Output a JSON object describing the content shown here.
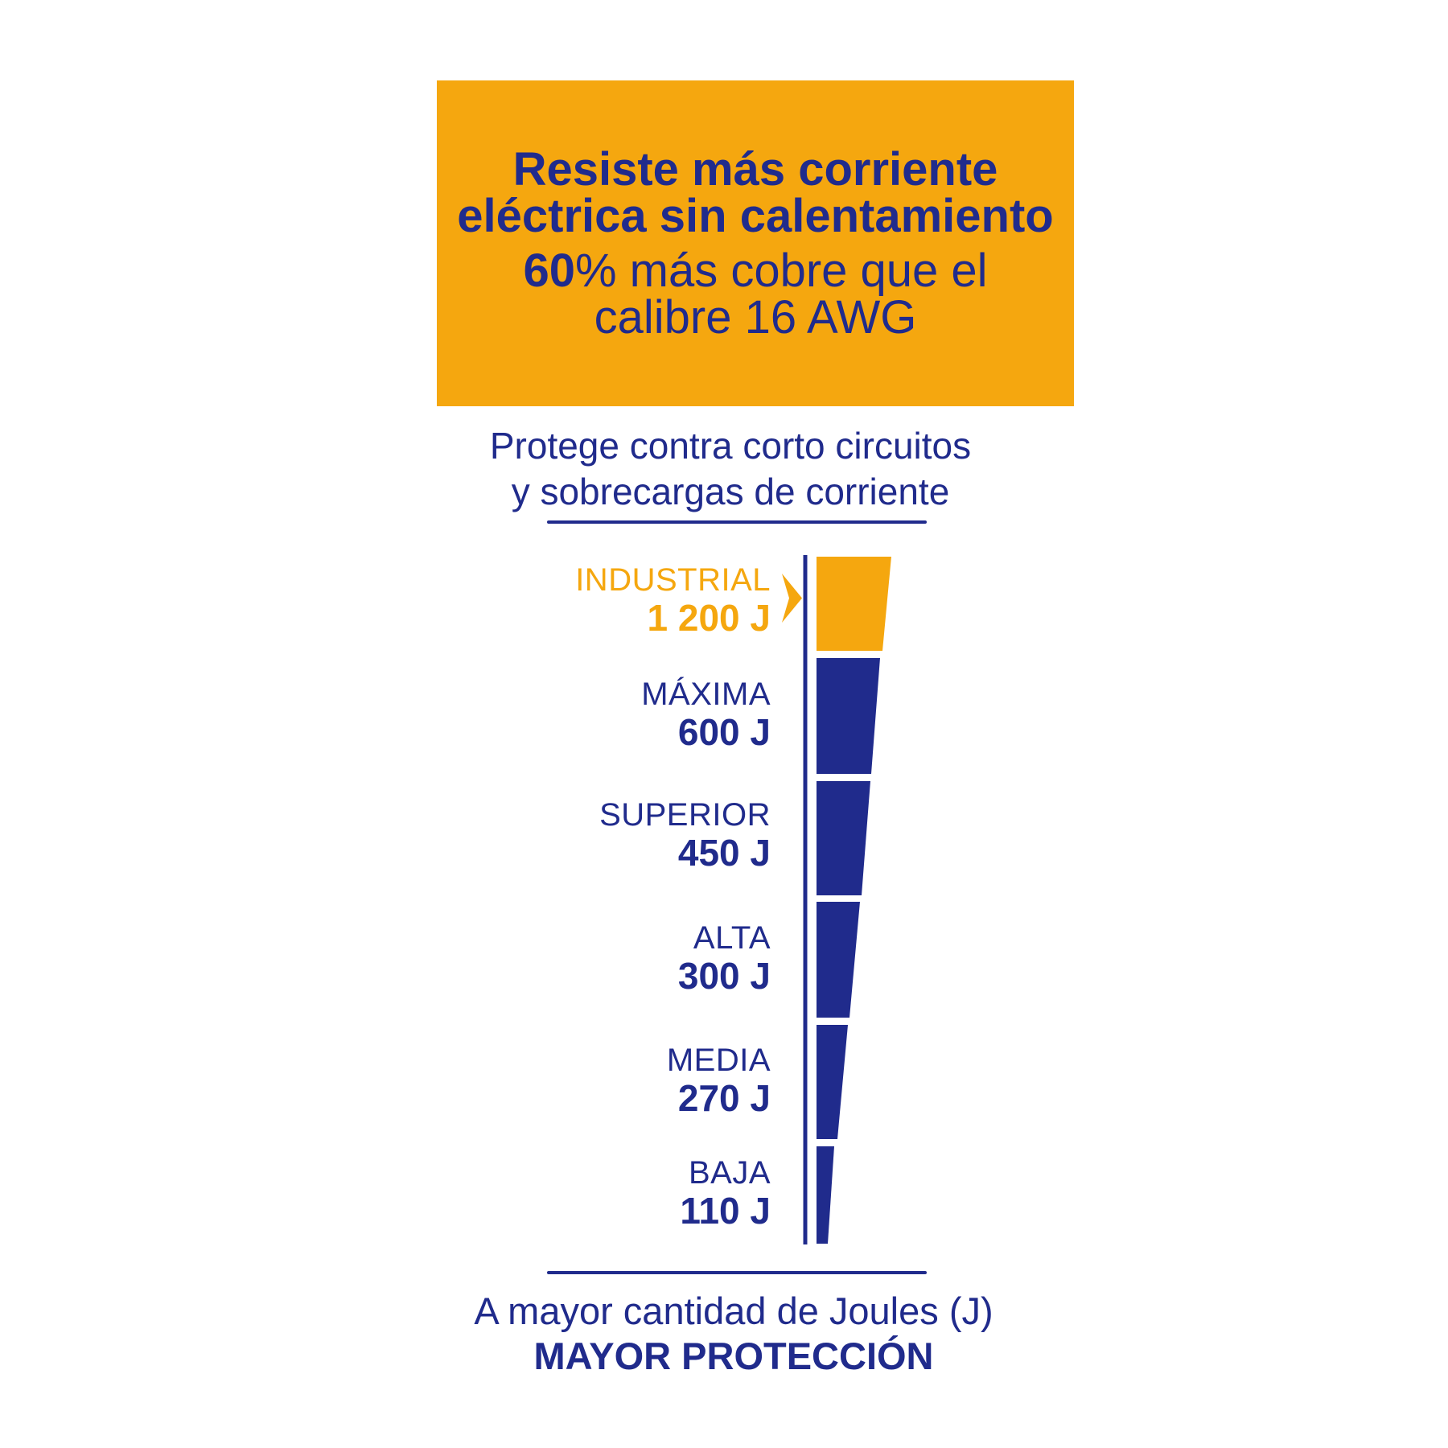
{
  "colors": {
    "orange": "#F5A70F",
    "navy": "#202B8C",
    "background": "#FFFFFF"
  },
  "header_box": {
    "line1": "Resiste más corriente",
    "line2": "eléctrica sin calentamiento",
    "line3_bold": "60",
    "line3_rest": "% más cobre que el",
    "line4": "calibre 16 AWG"
  },
  "subtitle": {
    "line1": "Protege contra corto circuitos",
    "line2": "y sobrecargas de corriente"
  },
  "chart_data": {
    "type": "bar",
    "variant": "vertical-funnel",
    "title": "Protege contra corto circuitos y sobrecargas de corriente",
    "categories": [
      "INDUSTRIAL",
      "MÁXIMA",
      "SUPERIOR",
      "ALTA",
      "MEDIA",
      "BAJA"
    ],
    "values": [
      1200,
      600,
      450,
      300,
      270,
      110
    ],
    "unit": "J",
    "legend_position": "left",
    "grid": false,
    "highlight_category": "INDUSTRIAL",
    "levels": [
      {
        "name": "INDUSTRIAL",
        "joules": 1200,
        "value_label": "1 200 J",
        "color": "#F5A70F",
        "highlight": true
      },
      {
        "name": "MÁXIMA",
        "joules": 600,
        "value_label": "600 J",
        "color": "#202B8C",
        "highlight": false
      },
      {
        "name": "SUPERIOR",
        "joules": 450,
        "value_label": "450 J",
        "color": "#202B8C",
        "highlight": false
      },
      {
        "name": "ALTA",
        "joules": 300,
        "value_label": "300 J",
        "color": "#202B8C",
        "highlight": false
      },
      {
        "name": "MEDIA",
        "joules": 270,
        "value_label": "270 J",
        "color": "#202B8C",
        "highlight": false
      },
      {
        "name": "BAJA",
        "joules": 110,
        "value_label": "110 J",
        "color": "#202B8C",
        "highlight": false
      }
    ]
  },
  "footer": {
    "line1": "A mayor cantidad de Joules (J)",
    "line2": "MAYOR PROTECCIÓN"
  }
}
